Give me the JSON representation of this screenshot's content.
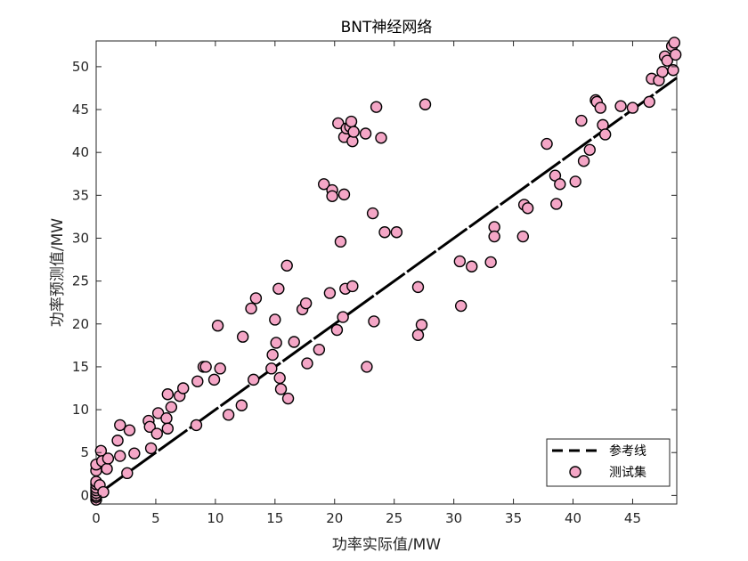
{
  "chart_data": {
    "type": "scatter",
    "title": "BNT神经网络",
    "xlabel": "功率实际值/MW",
    "ylabel": "功率预测值/MW",
    "xlim": [
      0,
      48.7
    ],
    "ylim": [
      -1,
      53
    ],
    "xticks": [
      0,
      5,
      10,
      15,
      20,
      25,
      30,
      35,
      40,
      45
    ],
    "yticks": [
      0,
      5,
      10,
      15,
      20,
      25,
      30,
      35,
      40,
      45,
      50
    ],
    "grid": false,
    "legend": {
      "placement": "bottom-right",
      "entries": [
        {
          "label": "参考线",
          "style": "dashed-line",
          "color": "#000000"
        },
        {
          "label": "测试集",
          "style": "circle-marker",
          "color": "#F4A6C6"
        }
      ]
    },
    "reference_line": {
      "name": "参考线",
      "x": [
        0,
        48.7
      ],
      "y": [
        0,
        48.7
      ]
    },
    "series": [
      {
        "name": "测试集",
        "color": "#F4A6C6",
        "edge_color": "#000000",
        "points": [
          [
            0,
            -0.5
          ],
          [
            0,
            -0.2
          ],
          [
            0,
            0
          ],
          [
            0,
            0.3
          ],
          [
            0,
            0.6
          ],
          [
            0,
            0.9
          ],
          [
            0,
            1.3
          ],
          [
            0,
            1.6
          ],
          [
            0,
            2.9
          ],
          [
            0,
            3.6
          ],
          [
            0.3,
            1.2
          ],
          [
            0.4,
            5.2
          ],
          [
            0.5,
            4
          ],
          [
            0.6,
            0.4
          ],
          [
            0.9,
            3.1
          ],
          [
            1.0,
            4.3
          ],
          [
            1.8,
            6.4
          ],
          [
            2.0,
            4.6
          ],
          [
            2.0,
            8.2
          ],
          [
            2.6,
            2.6
          ],
          [
            2.8,
            7.6
          ],
          [
            3.2,
            4.9
          ],
          [
            4.4,
            8.7
          ],
          [
            4.5,
            8.0
          ],
          [
            4.6,
            5.5
          ],
          [
            5.1,
            7.2
          ],
          [
            5.2,
            9.6
          ],
          [
            5.9,
            9.0
          ],
          [
            6.0,
            7.8
          ],
          [
            6.0,
            11.8
          ],
          [
            6.3,
            10.3
          ],
          [
            7.0,
            11.6
          ],
          [
            7.3,
            12.5
          ],
          [
            8.4,
            8.2
          ],
          [
            8.5,
            13.3
          ],
          [
            9.0,
            15.0
          ],
          [
            9.2,
            15.0
          ],
          [
            9.9,
            13.5
          ],
          [
            10.2,
            19.8
          ],
          [
            10.4,
            14.8
          ],
          [
            11.1,
            9.4
          ],
          [
            12.2,
            10.5
          ],
          [
            12.3,
            18.5
          ],
          [
            13.0,
            21.8
          ],
          [
            13.2,
            13.5
          ],
          [
            13.4,
            23.0
          ],
          [
            14.7,
            14.8
          ],
          [
            14.8,
            16.4
          ],
          [
            15.0,
            20.5
          ],
          [
            15.1,
            17.8
          ],
          [
            15.3,
            24.1
          ],
          [
            15.4,
            13.7
          ],
          [
            15.5,
            12.4
          ],
          [
            16.0,
            26.8
          ],
          [
            16.1,
            11.3
          ],
          [
            16.6,
            17.9
          ],
          [
            17.3,
            21.7
          ],
          [
            17.6,
            22.4
          ],
          [
            17.7,
            15.4
          ],
          [
            18.7,
            17.0
          ],
          [
            19.1,
            36.3
          ],
          [
            19.6,
            23.6
          ],
          [
            19.8,
            35.6
          ],
          [
            19.8,
            34.9
          ],
          [
            20.2,
            19.3
          ],
          [
            20.3,
            43.4
          ],
          [
            20.5,
            29.6
          ],
          [
            20.7,
            20.8
          ],
          [
            20.8,
            41.8
          ],
          [
            20.8,
            35.1
          ],
          [
            20.9,
            24.1
          ],
          [
            21.0,
            42.8
          ],
          [
            21.3,
            43.0
          ],
          [
            21.4,
            43.6
          ],
          [
            21.5,
            24.4
          ],
          [
            21.5,
            41.3
          ],
          [
            21.6,
            42.4
          ],
          [
            22.6,
            42.2
          ],
          [
            22.7,
            15.0
          ],
          [
            23.2,
            32.9
          ],
          [
            23.3,
            20.3
          ],
          [
            23.5,
            45.3
          ],
          [
            23.9,
            41.7
          ],
          [
            24.2,
            30.7
          ],
          [
            25.2,
            30.7
          ],
          [
            27.0,
            24.3
          ],
          [
            27.0,
            18.7
          ],
          [
            27.3,
            19.9
          ],
          [
            27.6,
            45.6
          ],
          [
            30.5,
            27.3
          ],
          [
            30.6,
            22.1
          ],
          [
            31.5,
            26.7
          ],
          [
            33.1,
            27.2
          ],
          [
            33.4,
            31.3
          ],
          [
            33.4,
            30.2
          ],
          [
            35.8,
            30.2
          ],
          [
            35.9,
            33.9
          ],
          [
            36.2,
            33.5
          ],
          [
            37.8,
            41.0
          ],
          [
            38.5,
            37.3
          ],
          [
            38.6,
            34.0
          ],
          [
            38.9,
            36.3
          ],
          [
            40.2,
            36.6
          ],
          [
            40.7,
            43.7
          ],
          [
            40.9,
            39.0
          ],
          [
            41.4,
            40.3
          ],
          [
            41.9,
            46.1
          ],
          [
            42.0,
            45.9
          ],
          [
            42.3,
            45.2
          ],
          [
            42.5,
            43.2
          ],
          [
            42.7,
            42.1
          ],
          [
            44.0,
            45.4
          ],
          [
            45.0,
            45.2
          ],
          [
            46.4,
            45.9
          ],
          [
            46.6,
            48.6
          ],
          [
            47.2,
            48.4
          ],
          [
            47.5,
            49.4
          ],
          [
            47.7,
            51.2
          ],
          [
            47.9,
            50.7
          ],
          [
            48.3,
            52.4
          ],
          [
            48.4,
            49.6
          ],
          [
            48.5,
            52.8
          ],
          [
            48.6,
            51.4
          ]
        ]
      }
    ]
  }
}
